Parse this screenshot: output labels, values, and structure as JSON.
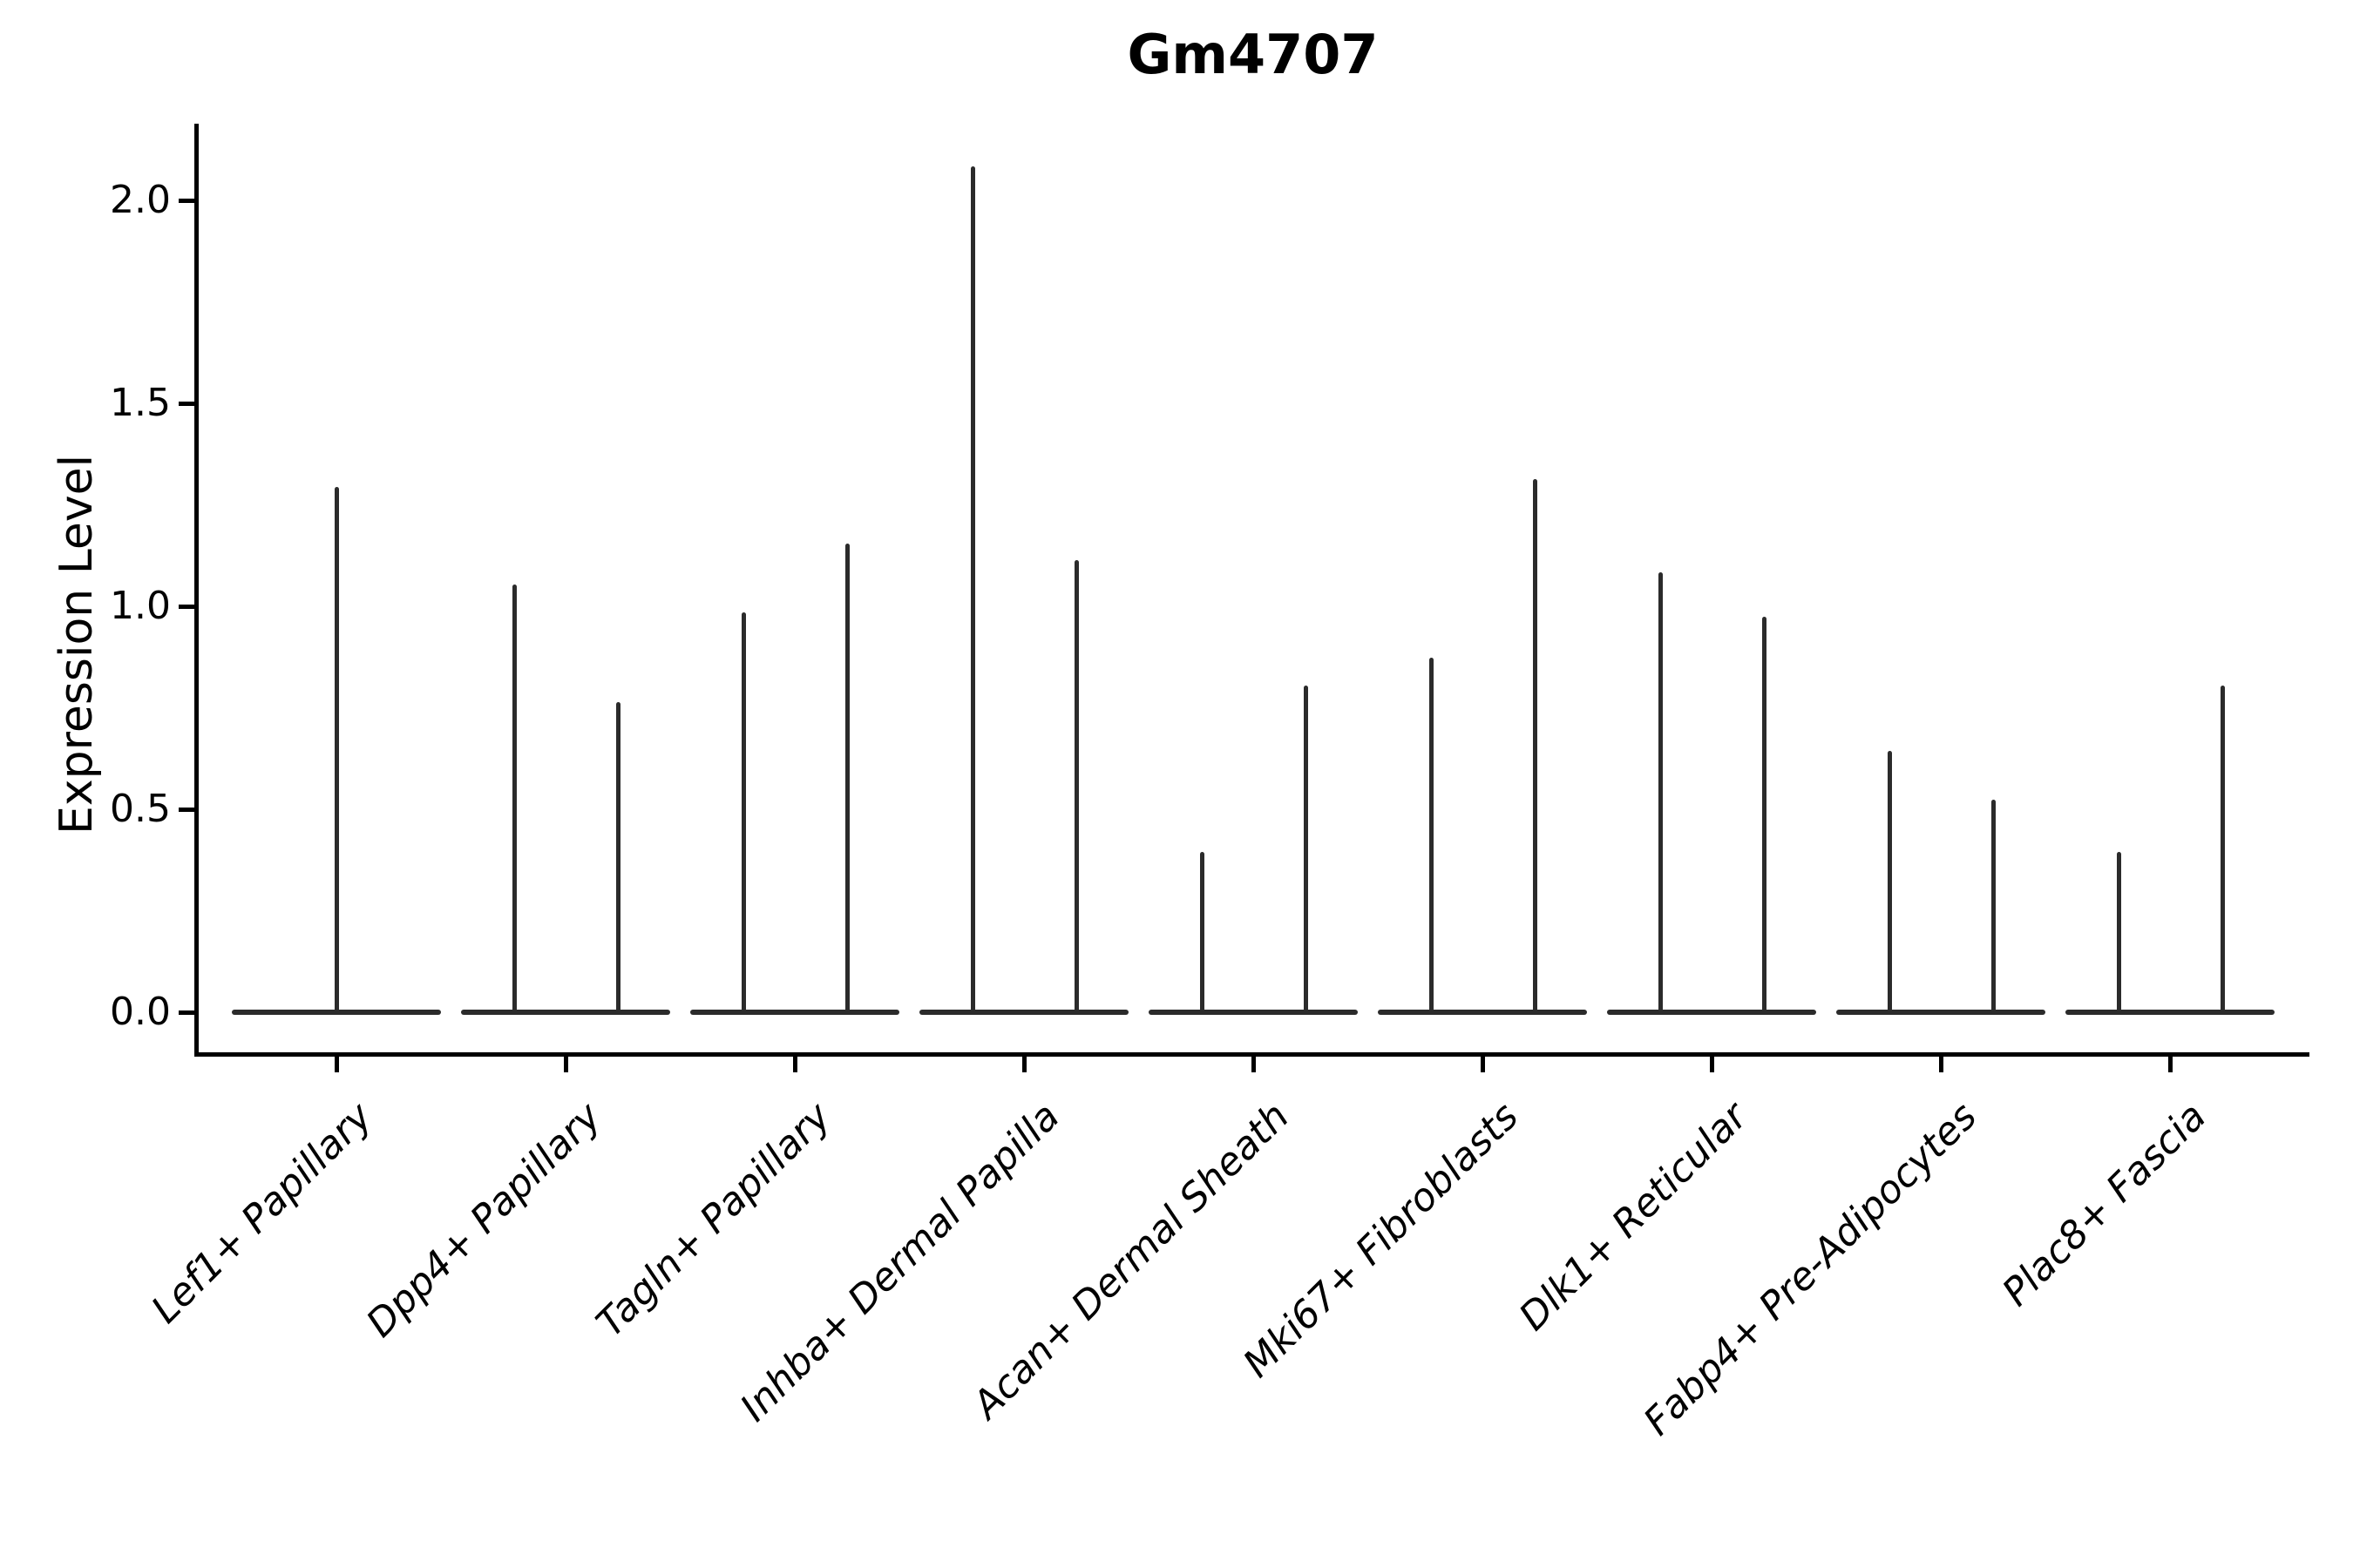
{
  "figure": {
    "title": "Gm4707",
    "ylabel": "Expression Level"
  },
  "chart_data": {
    "type": "violin",
    "title": "Gm4707",
    "xlabel": "",
    "ylabel": "Expression Level",
    "ylim": [
      0,
      2.17
    ],
    "yticks": [
      {
        "value": 0.0,
        "label": "0.0"
      },
      {
        "value": 0.5,
        "label": "0.5"
      },
      {
        "value": 1.0,
        "label": "1.0"
      },
      {
        "value": 1.5,
        "label": "1.5"
      },
      {
        "value": 2.0,
        "label": "2.0"
      }
    ],
    "grid": false,
    "legend": "none",
    "baseline_value": 0.0,
    "description": "Collapsed violins: expression is ~0 for most cells; each thin vertical spike marks the tail of a violin reaching its maximum expression value.",
    "categories": [
      "Lef1+ Papillary",
      "Dpp4+ Papillary",
      "Tagln+ Papillary",
      "Inhba+ Dermal Papilla",
      "Acan+ Dermal Sheath",
      "Mki67+ Fibroblasts",
      "Dlk1+ Reticular",
      "Fabp4+ Pre-Adipocytes",
      "Plac8+ Fascia"
    ],
    "violins": [
      {
        "category": "Lef1+ Papillary",
        "spike_max_values": [
          1.29
        ]
      },
      {
        "category": "Dpp4+ Papillary",
        "spike_max_values": [
          1.05,
          0.76
        ]
      },
      {
        "category": "Tagln+ Papillary",
        "spike_max_values": [
          0.98,
          1.15
        ]
      },
      {
        "category": "Inhba+ Dermal Papilla",
        "spike_max_values": [
          2.08,
          1.11
        ]
      },
      {
        "category": "Acan+ Dermal Sheath",
        "spike_max_values": [
          0.39,
          0.8
        ]
      },
      {
        "category": "Mki67+ Fibroblasts",
        "spike_max_values": [
          0.87,
          1.31
        ]
      },
      {
        "category": "Dlk1+ Reticular",
        "spike_max_values": [
          1.08,
          0.97
        ]
      },
      {
        "category": "Fabp4+ Pre-Adipocytes",
        "spike_max_values": [
          0.64,
          0.52
        ]
      },
      {
        "category": "Plac8+ Fascia",
        "spike_max_values": [
          0.39,
          0.8
        ]
      }
    ],
    "colors": {
      "violin_line": "#2b2b2b",
      "axis": "#000000",
      "text": "#000000",
      "background": "#ffffff"
    }
  }
}
